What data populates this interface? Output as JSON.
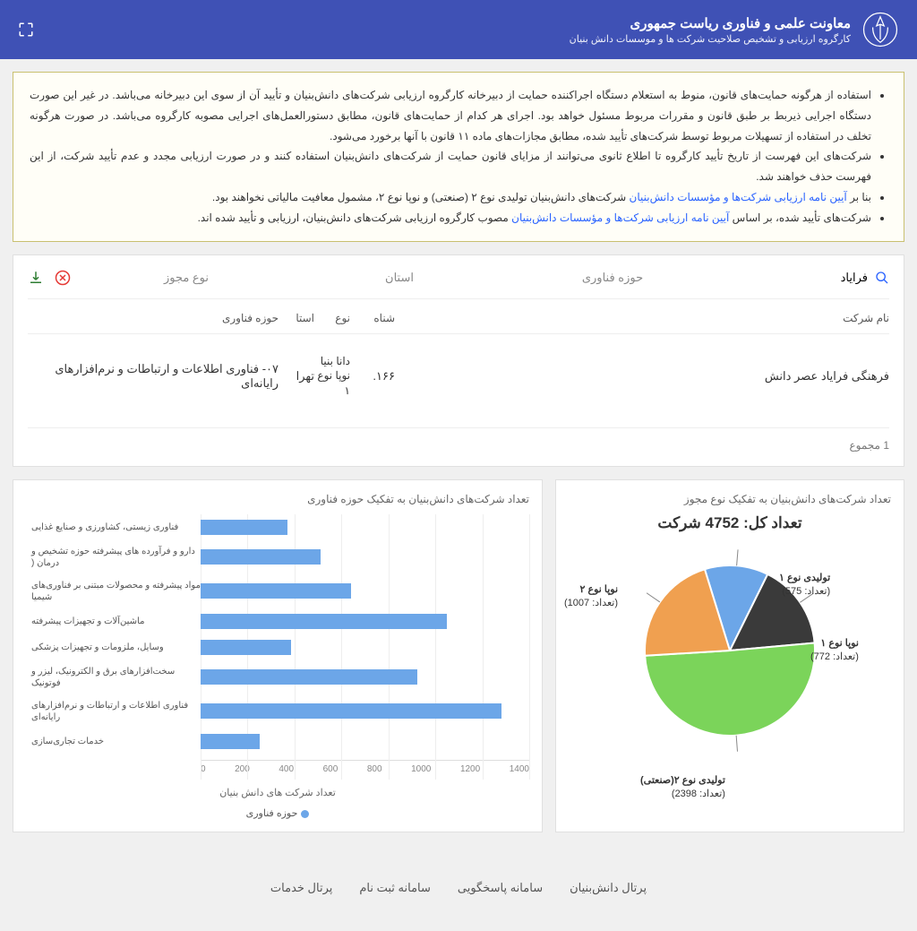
{
  "header": {
    "title": "معاونت علمی و فناوری ریاست جمهوری",
    "subtitle": "کارگروه ارزیابی و تشخیص صلاحیت شرکت ها و موسسات دانش بنیان"
  },
  "notice": {
    "items": [
      {
        "pre": "استفاده از هرگونه حمایت‌های قانون، منوط به استعلام دستگاه اجراکننده حمایت از دبیرخانه کارگروه ارزیابی شرکت‌های دانش‌بنیان و تأیید آن از سوی این دبیرخانه می‌باشد. در غیر این صورت دستگاه اجرایی ذیربط بر طبق قانون و مقررات مربوط مسئول خواهد بود. اجرای هر کدام از حمایت‌های قانون، مطابق دستورالعمل‌های اجرایی مصوبه کارگروه می‌باشد. در صورت هرگونه تخلف در استفاده از تسهیلات مربوط توسط شرکت‌های تأیید شده، مطابق مجازات‌های ماده ۱۱ قانون با آنها برخورد می‌شود."
      },
      {
        "pre": "شرکت‌های این فهرست از تاریخ تأیید کارگروه تا اطلاع ثانوی می‌توانند از مزایای قانون حمایت از شرکت‌های دانش‌بنیان استفاده کنند و در صورت ارزیابی مجدد و عدم تأیید شرکت، از این فهرست حذف خواهند شد."
      },
      {
        "pre": "بنا بر ",
        "link": "آیین نامه ارزیابی شرکت‌ها و مؤسسات دانش‌بنیان",
        "post": " شرکت‌های دانش‌بنیان تولیدی نوع ۲ (صنعتی) و نوپا نوع ۲، مشمول معافیت مالیاتی نخواهند بود."
      },
      {
        "pre": "شرکت‌های تأیید شده، بر اساس ",
        "link": "آیین نامه ارزیابی شرکت‌ها و مؤسسات دانش‌بنیان",
        "post": " مصوب کارگروه ارزیابی شرکت‌های دانش‌بنیان، ارزیابی و تأیید شده اند."
      }
    ]
  },
  "filters": {
    "search_value": "فرایاد",
    "field": "حوزه فناوری",
    "province": "استان",
    "license": "نوع مجوز"
  },
  "table": {
    "headers": {
      "name": "نام شرکت",
      "id": "شناه",
      "type": "نوع",
      "province": "استا",
      "field": "حوزه فناوری"
    },
    "rows": [
      {
        "name": "فرهنگی فرایاد عصر دانش",
        "id": "۱۶۶.",
        "type": "دانا بنیا نوپا نوع ۱",
        "province": "تهرا",
        "field": "۰۷- فناوری اطلاعات و ارتباطات و نرم‌افزارهای رایانه‌ای"
      }
    ],
    "footer": "1 مجموع"
  },
  "pie_chart": {
    "title": "تعداد شرکت‌های دانش‌بنیان به تفکیک نوع مجوز",
    "total_label": "تعداد کل: 4752 شرکت",
    "slices": [
      {
        "label": "تولیدی نوع ۱",
        "count_label": "(تعداد: 575)",
        "value": 575,
        "color": "#6ca6e8"
      },
      {
        "label": "نوپا نوع ۱",
        "count_label": "(تعداد: 772)",
        "value": 772,
        "color": "#3a3a3a"
      },
      {
        "label": "تولیدی نوع ۲(صنعتی)",
        "count_label": "(تعداد: 2398)",
        "value": 2398,
        "color": "#7bd45a"
      },
      {
        "label": "نوپا نوع ۲",
        "count_label": "(تعداد: 1007)",
        "value": 1007,
        "color": "#f0a050"
      }
    ]
  },
  "bar_chart": {
    "title": "تعداد شرکت‌های دانش‌بنیان به تفکیک حوزه فناوری",
    "xlabel": "تعداد شرکت های دانش بنیان",
    "legend": "حوزه فناوری",
    "xmax": 1400,
    "xtick_step": 200,
    "bar_color": "#6ca6e8",
    "bars": [
      {
        "label": "فناوری زیستی، کشاورزی و صنایع غذایی",
        "value": 370
      },
      {
        "label": "دارو و فرآورده های پیشرفته حوزه تشخیص و درمان (",
        "value": 510
      },
      {
        "label": "مواد پیشرفته و محصولات مبتنی بر فناوری‌های شیمیا",
        "value": 640
      },
      {
        "label": "ماشین‌آلات و تجهیزات پیشرفته",
        "value": 1050
      },
      {
        "label": "وسایل، ملزومات و تجهیزات پزشکی",
        "value": 385
      },
      {
        "label": "سخت‌افزارهای برق و الکترونیک، لیزر و فوتونیک",
        "value": 925
      },
      {
        "label": "فناوری اطلاعات و ارتباطات و نرم‌افزارهای رایانه‌ای",
        "value": 1280
      },
      {
        "label": "خدمات تجاری‌سازی",
        "value": 250
      }
    ]
  },
  "footer": {
    "links": [
      "پرتال دانش‌بنیان",
      "سامانه پاسخگویی",
      "سامانه ثبت نام",
      "پرتال خدمات"
    ]
  }
}
